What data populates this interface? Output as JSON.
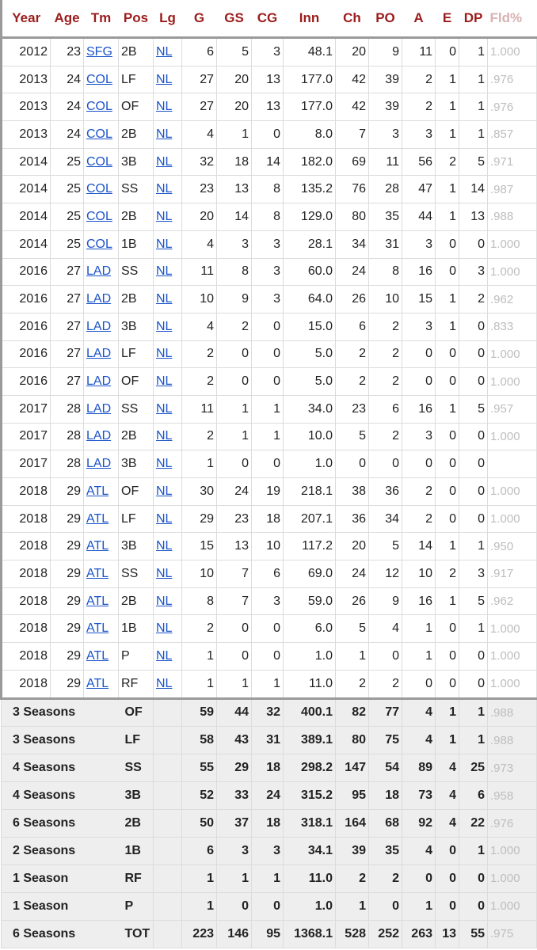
{
  "columns": [
    "Year",
    "Age",
    "Tm",
    "Pos",
    "Lg",
    "G",
    "GS",
    "CG",
    "Inn",
    "Ch",
    "PO",
    "A",
    "E",
    "DP",
    "Fld%"
  ],
  "rows": [
    [
      "2012",
      "23",
      "SFG",
      "2B",
      "NL",
      "6",
      "5",
      "3",
      "48.1",
      "20",
      "9",
      "11",
      "0",
      "1",
      "1.000"
    ],
    [
      "2013",
      "24",
      "COL",
      "LF",
      "NL",
      "27",
      "20",
      "13",
      "177.0",
      "42",
      "39",
      "2",
      "1",
      "1",
      ".976"
    ],
    [
      "2013",
      "24",
      "COL",
      "OF",
      "NL",
      "27",
      "20",
      "13",
      "177.0",
      "42",
      "39",
      "2",
      "1",
      "1",
      ".976"
    ],
    [
      "2013",
      "24",
      "COL",
      "2B",
      "NL",
      "4",
      "1",
      "0",
      "8.0",
      "7",
      "3",
      "3",
      "1",
      "1",
      ".857"
    ],
    [
      "2014",
      "25",
      "COL",
      "3B",
      "NL",
      "32",
      "18",
      "14",
      "182.0",
      "69",
      "11",
      "56",
      "2",
      "5",
      ".971"
    ],
    [
      "2014",
      "25",
      "COL",
      "SS",
      "NL",
      "23",
      "13",
      "8",
      "135.2",
      "76",
      "28",
      "47",
      "1",
      "14",
      ".987"
    ],
    [
      "2014",
      "25",
      "COL",
      "2B",
      "NL",
      "20",
      "14",
      "8",
      "129.0",
      "80",
      "35",
      "44",
      "1",
      "13",
      ".988"
    ],
    [
      "2014",
      "25",
      "COL",
      "1B",
      "NL",
      "4",
      "3",
      "3",
      "28.1",
      "34",
      "31",
      "3",
      "0",
      "0",
      "1.000"
    ],
    [
      "2016",
      "27",
      "LAD",
      "SS",
      "NL",
      "11",
      "8",
      "3",
      "60.0",
      "24",
      "8",
      "16",
      "0",
      "3",
      "1.000"
    ],
    [
      "2016",
      "27",
      "LAD",
      "2B",
      "NL",
      "10",
      "9",
      "3",
      "64.0",
      "26",
      "10",
      "15",
      "1",
      "2",
      ".962"
    ],
    [
      "2016",
      "27",
      "LAD",
      "3B",
      "NL",
      "4",
      "2",
      "0",
      "15.0",
      "6",
      "2",
      "3",
      "1",
      "0",
      ".833"
    ],
    [
      "2016",
      "27",
      "LAD",
      "LF",
      "NL",
      "2",
      "0",
      "0",
      "5.0",
      "2",
      "2",
      "0",
      "0",
      "0",
      "1.000"
    ],
    [
      "2016",
      "27",
      "LAD",
      "OF",
      "NL",
      "2",
      "0",
      "0",
      "5.0",
      "2",
      "2",
      "0",
      "0",
      "0",
      "1.000"
    ],
    [
      "2017",
      "28",
      "LAD",
      "SS",
      "NL",
      "11",
      "1",
      "1",
      "34.0",
      "23",
      "6",
      "16",
      "1",
      "5",
      ".957"
    ],
    [
      "2017",
      "28",
      "LAD",
      "2B",
      "NL",
      "2",
      "1",
      "1",
      "10.0",
      "5",
      "2",
      "3",
      "0",
      "0",
      "1.000"
    ],
    [
      "2017",
      "28",
      "LAD",
      "3B",
      "NL",
      "1",
      "0",
      "0",
      "1.0",
      "0",
      "0",
      "0",
      "0",
      "0",
      ""
    ],
    [
      "2018",
      "29",
      "ATL",
      "OF",
      "NL",
      "30",
      "24",
      "19",
      "218.1",
      "38",
      "36",
      "2",
      "0",
      "0",
      "1.000"
    ],
    [
      "2018",
      "29",
      "ATL",
      "LF",
      "NL",
      "29",
      "23",
      "18",
      "207.1",
      "36",
      "34",
      "2",
      "0",
      "0",
      "1.000"
    ],
    [
      "2018",
      "29",
      "ATL",
      "3B",
      "NL",
      "15",
      "13",
      "10",
      "117.2",
      "20",
      "5",
      "14",
      "1",
      "1",
      ".950"
    ],
    [
      "2018",
      "29",
      "ATL",
      "SS",
      "NL",
      "10",
      "7",
      "6",
      "69.0",
      "24",
      "12",
      "10",
      "2",
      "3",
      ".917"
    ],
    [
      "2018",
      "29",
      "ATL",
      "2B",
      "NL",
      "8",
      "7",
      "3",
      "59.0",
      "26",
      "9",
      "16",
      "1",
      "5",
      ".962"
    ],
    [
      "2018",
      "29",
      "ATL",
      "1B",
      "NL",
      "2",
      "0",
      "0",
      "6.0",
      "5",
      "4",
      "1",
      "0",
      "1",
      "1.000"
    ],
    [
      "2018",
      "29",
      "ATL",
      "P",
      "NL",
      "1",
      "0",
      "0",
      "1.0",
      "1",
      "0",
      "1",
      "0",
      "0",
      "1.000"
    ],
    [
      "2018",
      "29",
      "ATL",
      "RF",
      "NL",
      "1",
      "1",
      "1",
      "11.0",
      "2",
      "2",
      "0",
      "0",
      "0",
      "1.000"
    ]
  ],
  "totals": [
    [
      "3 Seasons",
      "OF",
      "59",
      "44",
      "32",
      "400.1",
      "82",
      "77",
      "4",
      "1",
      "1",
      ".988"
    ],
    [
      "3 Seasons",
      "LF",
      "58",
      "43",
      "31",
      "389.1",
      "80",
      "75",
      "4",
      "1",
      "1",
      ".988"
    ],
    [
      "4 Seasons",
      "SS",
      "55",
      "29",
      "18",
      "298.2",
      "147",
      "54",
      "89",
      "4",
      "25",
      ".973"
    ],
    [
      "4 Seasons",
      "3B",
      "52",
      "33",
      "24",
      "315.2",
      "95",
      "18",
      "73",
      "4",
      "6",
      ".958"
    ],
    [
      "6 Seasons",
      "2B",
      "50",
      "37",
      "18",
      "318.1",
      "164",
      "68",
      "92",
      "4",
      "22",
      ".976"
    ],
    [
      "2 Seasons",
      "1B",
      "6",
      "3",
      "3",
      "34.1",
      "39",
      "35",
      "4",
      "0",
      "1",
      "1.000"
    ],
    [
      "1 Season",
      "RF",
      "1",
      "1",
      "1",
      "11.0",
      "2",
      "2",
      "0",
      "0",
      "0",
      "1.000"
    ],
    [
      "1 Season",
      "P",
      "1",
      "0",
      "0",
      "1.0",
      "1",
      "0",
      "1",
      "0",
      "0",
      "1.000"
    ],
    [
      "6 Seasons",
      "TOT",
      "223",
      "146",
      "95",
      "1368.1",
      "528",
      "252",
      "263",
      "13",
      "55",
      ".975"
    ]
  ]
}
